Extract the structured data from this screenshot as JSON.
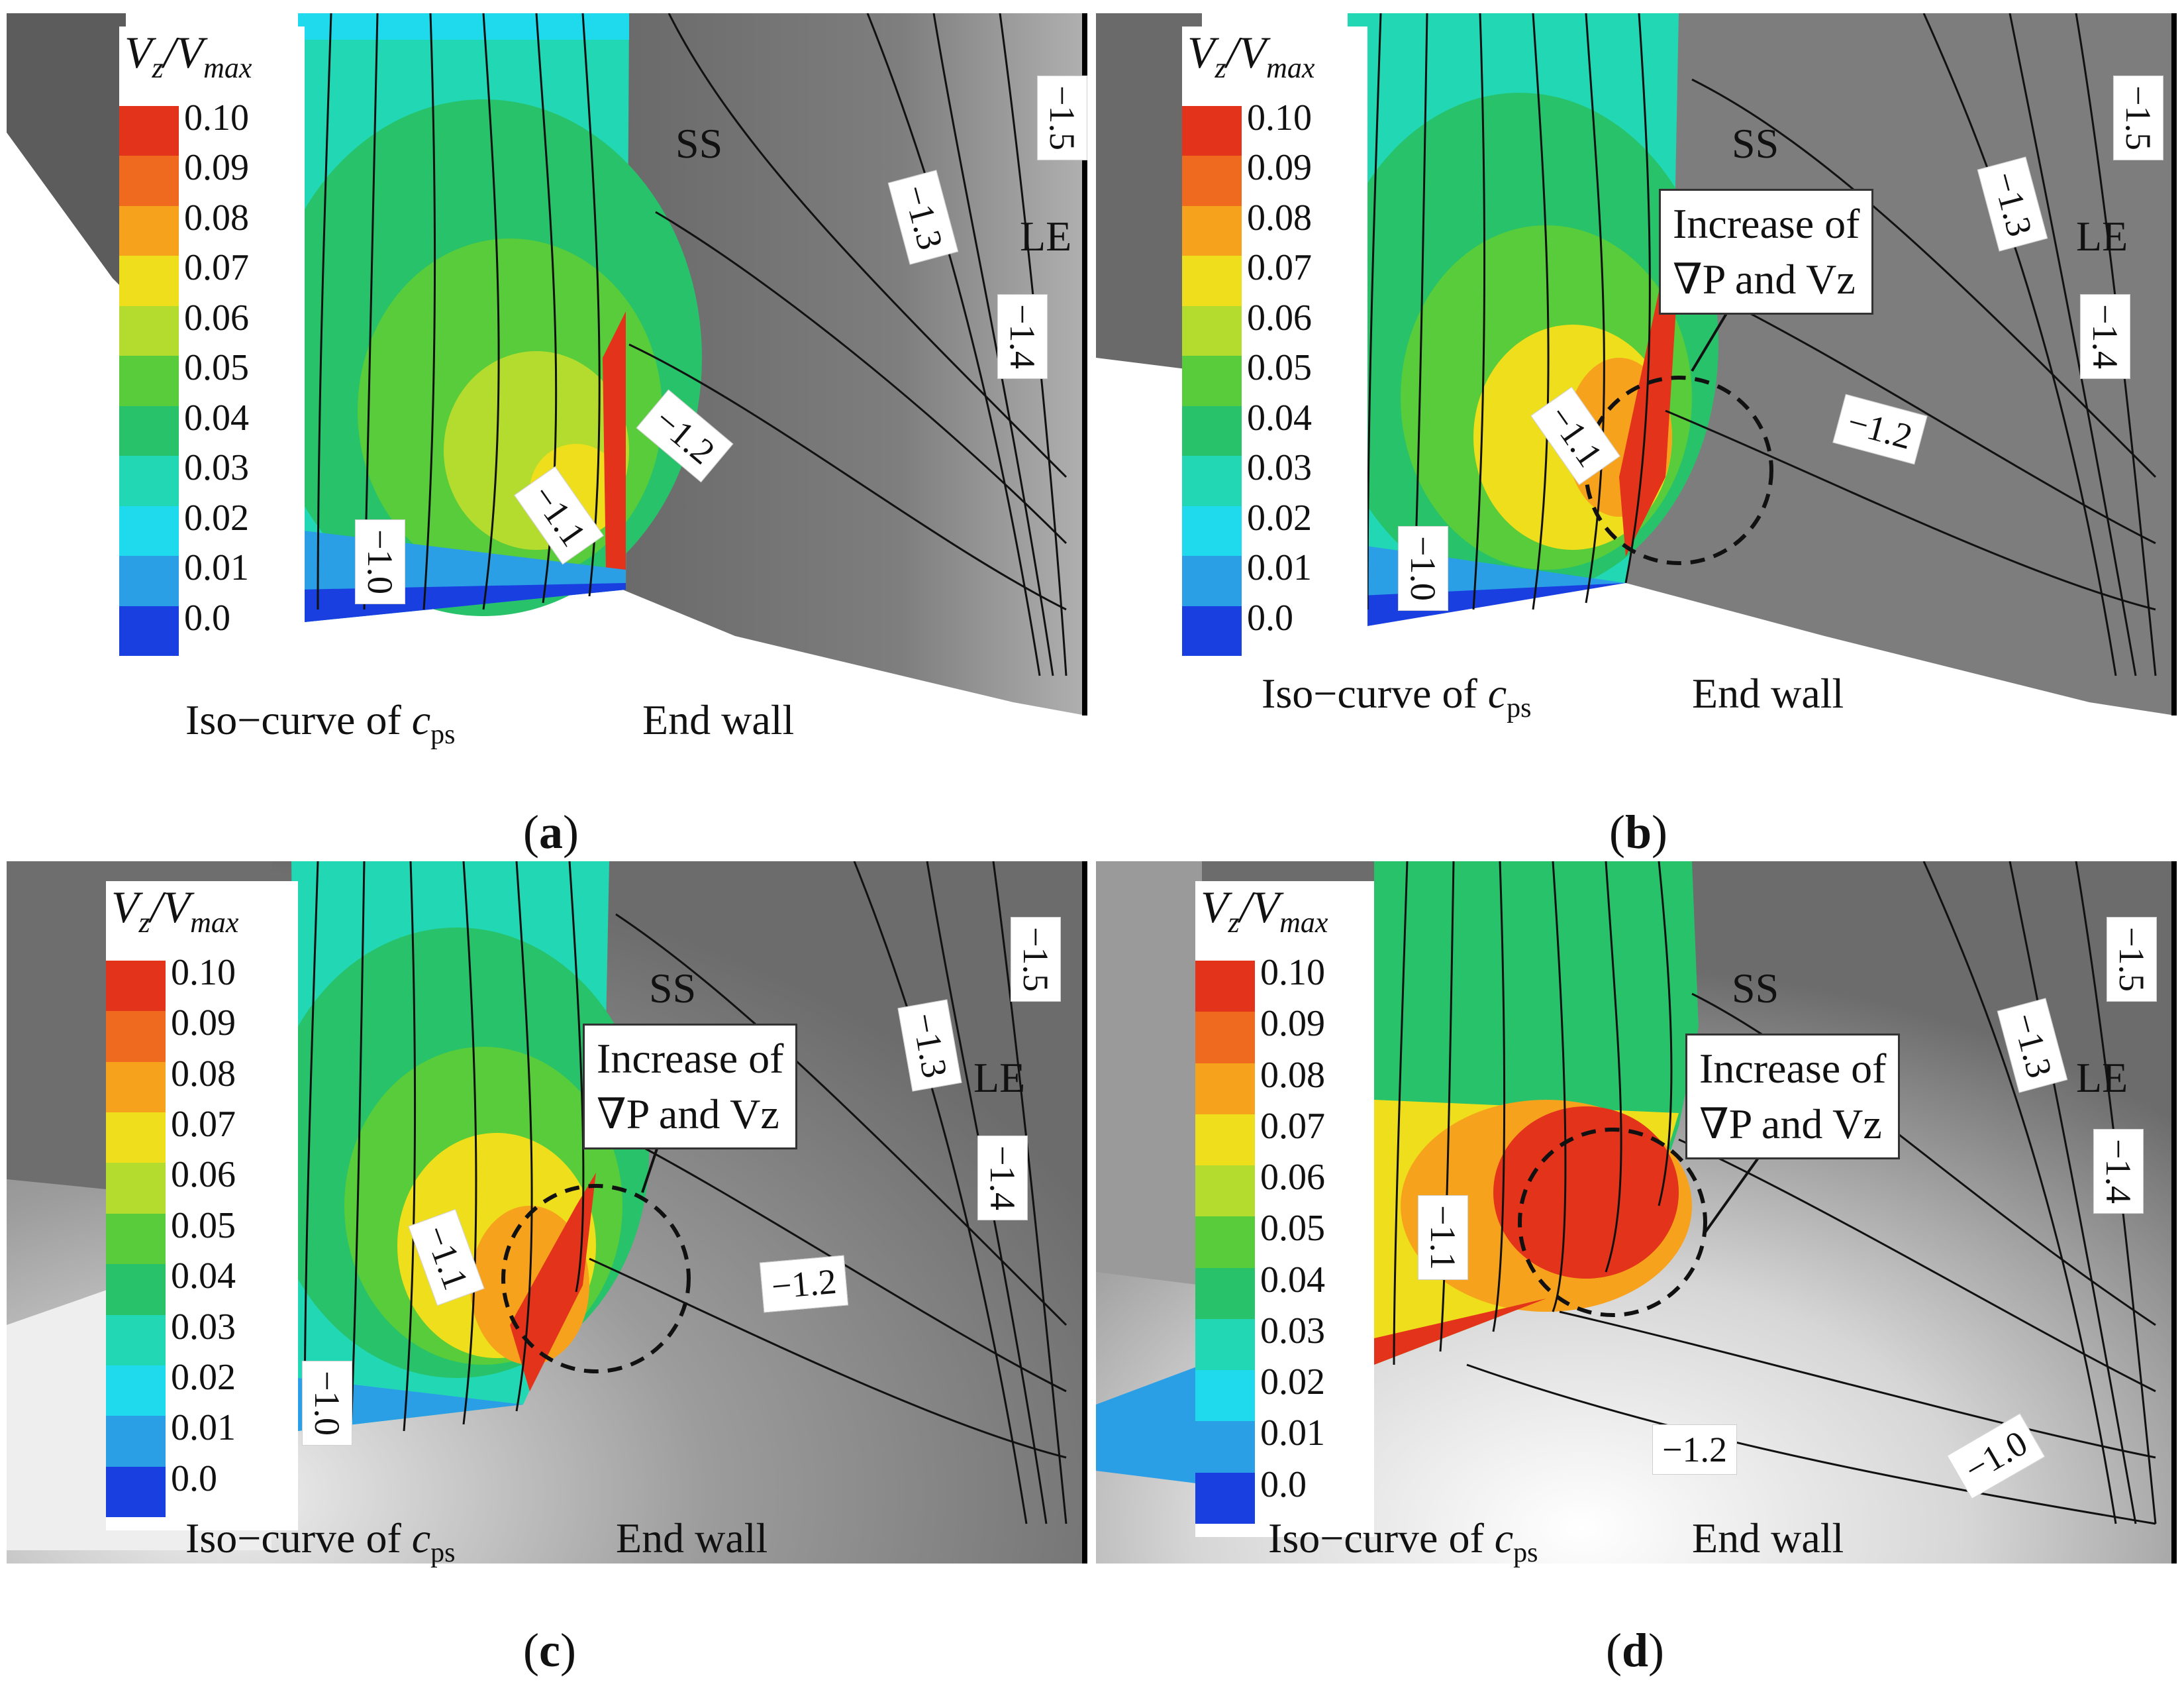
{
  "colorbar": {
    "title_main": "V",
    "title_sub_z": "z",
    "title_slash": "/V",
    "title_sub_max": "max",
    "levels": [
      {
        "label": "0.10",
        "color": "#e3331a"
      },
      {
        "label": "0.09",
        "color": "#ef6a1f"
      },
      {
        "label": "0.08",
        "color": "#f7a21c"
      },
      {
        "label": "0.07",
        "color": "#eede1b"
      },
      {
        "label": "0.06",
        "color": "#b4dc2e"
      },
      {
        "label": "0.05",
        "color": "#58cc3a"
      },
      {
        "label": "0.04",
        "color": "#27c26a"
      },
      {
        "label": "0.03",
        "color": "#22d7b4"
      },
      {
        "label": "0.02",
        "color": "#1fd9ec"
      },
      {
        "label": "0.01",
        "color": "#2b9fe6"
      },
      {
        "label": "0.0",
        "color": "#1a3fe0"
      }
    ]
  },
  "common": {
    "ss": "SS",
    "le": "LE",
    "end_wall": "End wall",
    "iso_prefix": "Iso−curve of ",
    "iso_var": "c",
    "iso_sub": "ps",
    "callout_line1": "Increase of",
    "callout_line2": "∇P and Vz"
  },
  "panels": [
    {
      "id": "a",
      "label": "a",
      "contours": [
        "−1.5",
        "−1.3",
        "−1.4",
        "−1.2",
        "−1.1",
        "−1.0"
      ]
    },
    {
      "id": "b",
      "label": "b",
      "contours": [
        "−1.5",
        "−1.3",
        "−1.4",
        "−1.2",
        "−1.1",
        "−1.0"
      ]
    },
    {
      "id": "c",
      "label": "c",
      "contours": [
        "−1.5",
        "−1.3",
        "−1.4",
        "−1.2",
        "−1.1",
        "−1.0"
      ]
    },
    {
      "id": "d",
      "label": "d",
      "contours": [
        "−1.5",
        "−1.3",
        "−1.4",
        "−1.2",
        "−1.1",
        "−1.0"
      ]
    }
  ]
}
